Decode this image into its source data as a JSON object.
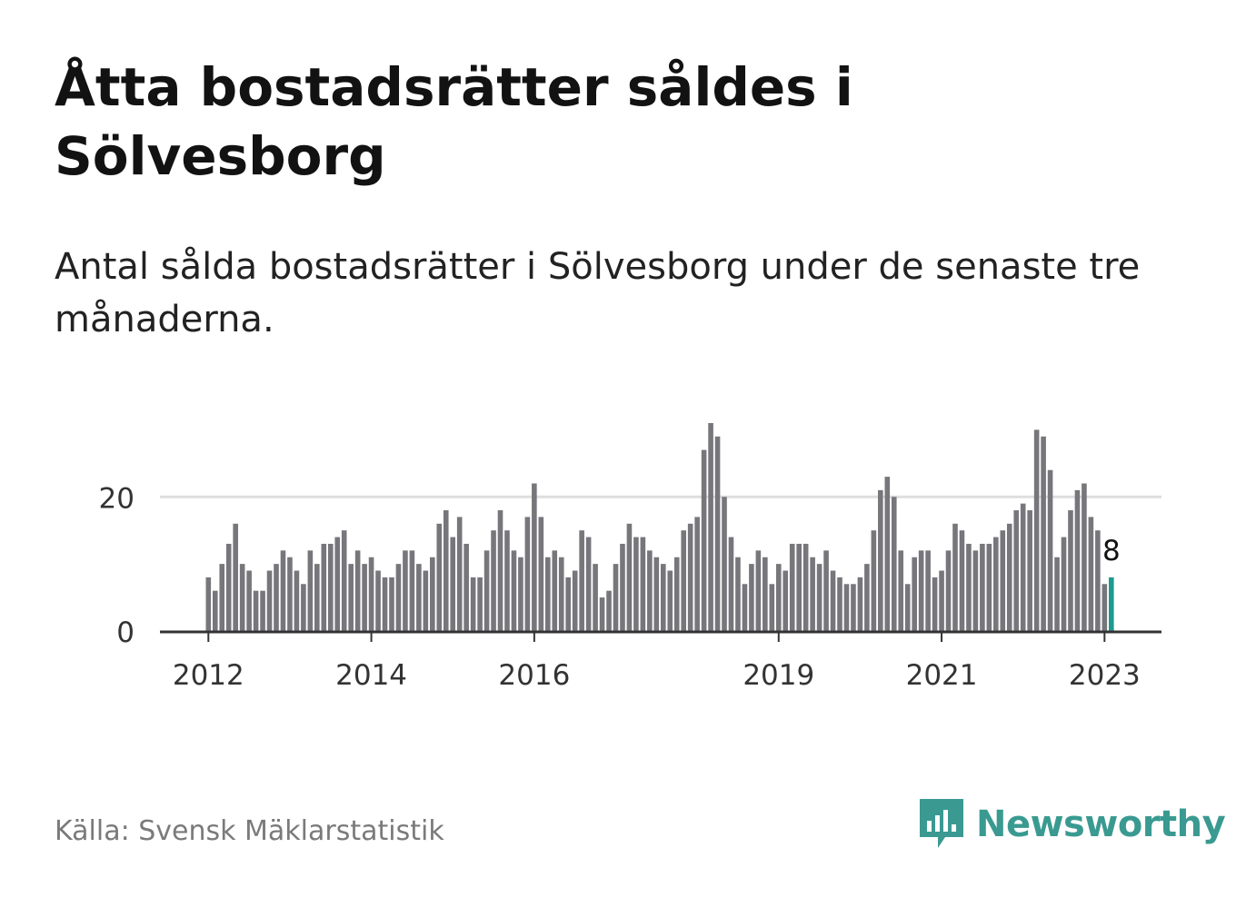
{
  "title": "Åtta bostadsrätter såldes i Sölvesborg",
  "subtitle": "Antal sålda bostadsrätter i Sölvesborg under de senaste tre månaderna.",
  "source": "Källa: Svensk Mäklarstatistik",
  "brand": {
    "name": "Newsworthy",
    "color": "#3a9a91",
    "icon": "newsworthy-logo-icon"
  },
  "colors": {
    "bar": "#77767b",
    "highlight": "#1f9a8f",
    "grid": "#dedede",
    "axis": "#333333"
  },
  "chart_data": {
    "type": "bar",
    "xlabel": "",
    "ylabel": "",
    "ylim": [
      0,
      31
    ],
    "yticks": [
      0,
      20
    ],
    "grid": true,
    "xtick_labels": [
      "2012",
      "2014",
      "2016",
      "2019",
      "2021",
      "2023"
    ],
    "highlight_label": "8",
    "series": [
      {
        "values": [
          8,
          6,
          10,
          13,
          16,
          10,
          9,
          6,
          6,
          9,
          10,
          12,
          11,
          9,
          7,
          12,
          10,
          13,
          13,
          14,
          15,
          10,
          12,
          10,
          11,
          9,
          8,
          8,
          10,
          12,
          12,
          10,
          9,
          11,
          16,
          18,
          14,
          17,
          13,
          8,
          8,
          12,
          15,
          18,
          15,
          12,
          11,
          17,
          22,
          17,
          11,
          12,
          11,
          8,
          9,
          15,
          14,
          10,
          5,
          6,
          10,
          13,
          16,
          14,
          14,
          12,
          11,
          10,
          9,
          11,
          15,
          16,
          17,
          27,
          31,
          29,
          20,
          14,
          11,
          7,
          10,
          12,
          11,
          7,
          10,
          9,
          13,
          13,
          13,
          11,
          10,
          12,
          9,
          8,
          7,
          7,
          8,
          10,
          15,
          21,
          23,
          20,
          12,
          7,
          11,
          12,
          12,
          8,
          9,
          12,
          16,
          15,
          13,
          12,
          13,
          13,
          14,
          15,
          16,
          18,
          19,
          18,
          30,
          29,
          24,
          11,
          14,
          18,
          21,
          22,
          17,
          15,
          7,
          8
        ]
      }
    ]
  }
}
